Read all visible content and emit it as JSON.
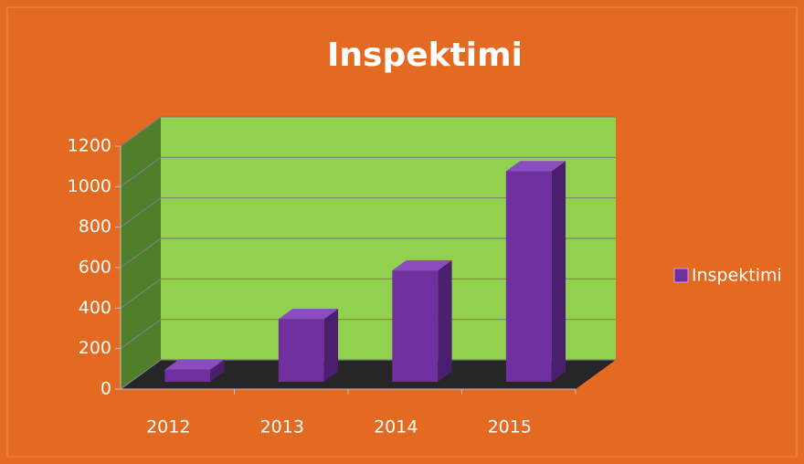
{
  "chart_data": {
    "type": "bar",
    "title": "Inspektimi",
    "categories": [
      "2012",
      "2013",
      "2014",
      "2015"
    ],
    "series": [
      {
        "name": "Inspektimi",
        "color": "#7030a0",
        "values": [
          60,
          310,
          550,
          1040
        ]
      }
    ],
    "ylim": [
      0,
      1200
    ],
    "yticks": [
      0,
      200,
      400,
      600,
      800,
      1000,
      1200
    ],
    "grid": true,
    "legend": "right"
  }
}
